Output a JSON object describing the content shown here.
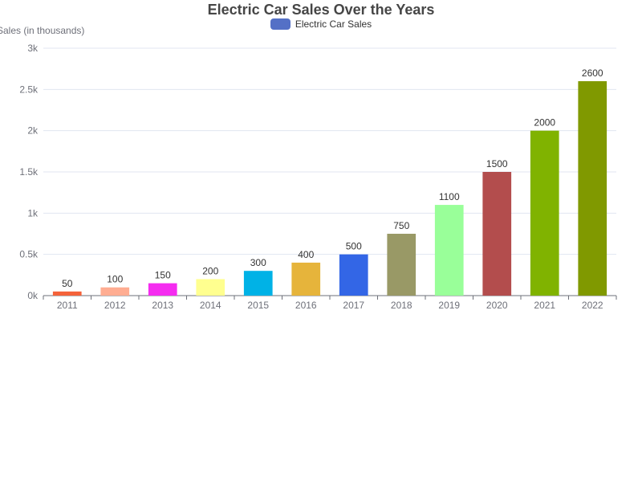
{
  "chart_data": {
    "type": "bar",
    "title": "Electric Car Sales Over the Years",
    "ylabel": "Sales (in thousands)",
    "xlabel": "",
    "legend": {
      "label": "Electric Car Sales",
      "color": "#5470c6",
      "position": "top-center"
    },
    "categories": [
      "2011",
      "2012",
      "2013",
      "2014",
      "2015",
      "2016",
      "2017",
      "2018",
      "2019",
      "2020",
      "2021",
      "2022"
    ],
    "values": [
      50,
      100,
      150,
      200,
      300,
      400,
      500,
      750,
      1100,
      1500,
      2000,
      2600
    ],
    "colors": [
      "#f4623a",
      "#ffad92",
      "#f52cf0",
      "#ffff8f",
      "#00b2e6",
      "#e6b43b",
      "#3366e6",
      "#999966",
      "#99ff99",
      "#b34d4d",
      "#80b300",
      "#809900"
    ],
    "ylim": [
      0,
      3000
    ],
    "yticks": [
      0,
      500,
      1000,
      1500,
      2000,
      2500,
      3000
    ],
    "ytick_labels": [
      "0k",
      "0.5k",
      "1k",
      "1.5k",
      "2k",
      "2.5k",
      "3k"
    ],
    "grid": true,
    "data_labels": true
  }
}
